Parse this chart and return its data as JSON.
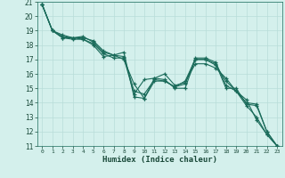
{
  "title": "",
  "xlabel": "Humidex (Indice chaleur)",
  "background_color": "#d4f0ec",
  "grid_color": "#b8ddd8",
  "line_color": "#1a6b5a",
  "xlim": [
    -0.5,
    23.5
  ],
  "ylim": [
    11,
    21
  ],
  "xticks": [
    0,
    1,
    2,
    3,
    4,
    5,
    6,
    7,
    8,
    9,
    10,
    11,
    12,
    13,
    14,
    15,
    16,
    17,
    18,
    19,
    20,
    21,
    22,
    23
  ],
  "yticks": [
    11,
    12,
    13,
    14,
    15,
    16,
    17,
    18,
    19,
    20,
    21
  ],
  "series": [
    [
      20.8,
      19.0,
      18.5,
      18.4,
      18.4,
      18.0,
      17.2,
      17.3,
      17.5,
      14.4,
      14.3,
      15.7,
      16.0,
      15.2,
      15.4,
      16.7,
      16.7,
      16.4,
      15.7,
      14.8,
      14.2,
      12.8,
      11.8,
      11.0
    ],
    [
      20.8,
      19.0,
      18.5,
      18.5,
      18.6,
      18.2,
      17.5,
      17.3,
      17.2,
      14.8,
      14.6,
      15.6,
      15.5,
      15.1,
      15.5,
      17.0,
      17.0,
      16.7,
      15.0,
      15.0,
      13.9,
      13.8,
      12.0,
      11.0
    ],
    [
      20.8,
      19.0,
      18.7,
      18.5,
      18.5,
      18.3,
      17.6,
      17.3,
      17.0,
      15.3,
      14.3,
      15.5,
      15.5,
      15.1,
      15.3,
      17.1,
      17.1,
      16.8,
      15.2,
      14.8,
      14.0,
      13.9,
      12.0,
      11.0
    ],
    [
      20.8,
      19.0,
      18.6,
      18.5,
      18.4,
      18.1,
      17.4,
      17.1,
      17.1,
      14.6,
      15.6,
      15.7,
      15.6,
      15.0,
      15.0,
      17.0,
      17.0,
      16.6,
      15.5,
      14.8,
      13.8,
      13.0,
      11.8,
      11.0
    ]
  ]
}
